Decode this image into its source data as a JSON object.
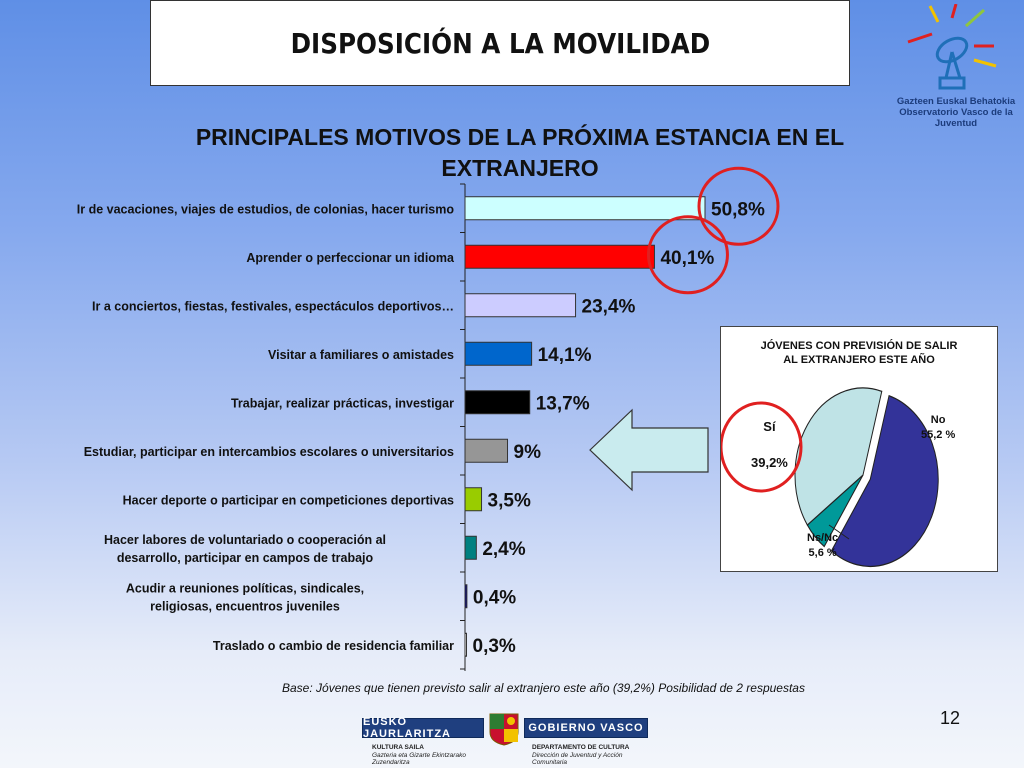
{
  "page_title": "DISPOSICIÓN A LA MOVILIDAD",
  "logo": {
    "line1": "Gazteen Euskal Behatokia",
    "line2": "Observatorio Vasco de la Juventud"
  },
  "chart_data": [
    {
      "type": "bar",
      "orientation": "horizontal",
      "title": "PRINCIPALES MOTIVOS DE LA PRÓXIMA ESTANCIA EN EL EXTRANJERO",
      "categories": [
        "Ir de vacaciones, viajes de estudios, de colonias, hacer turismo",
        "Aprender o perfeccionar un idioma",
        "Ir a conciertos, fiestas, festivales, espectáculos deportivos…",
        "Visitar a familiares o amistades",
        "Trabajar, realizar prácticas, investigar",
        "Estudiar, participar en intercambios escolares o universitarios",
        "Hacer deporte o participar en competiciones deportivas",
        "Hacer labores de voluntariado o cooperación al desarrollo, participar en campos de trabajo",
        "Acudir a reuniones políticas, sindicales, religiosas, encuentros juveniles",
        "Traslado o cambio de residencia familiar"
      ],
      "values": [
        50.8,
        40.1,
        23.4,
        14.1,
        13.7,
        9,
        3.5,
        2.4,
        0.4,
        0.3
      ],
      "value_labels": [
        "50,8%",
        "40,1%",
        "23,4%",
        "14,1%",
        "13,7%",
        "9%",
        "3,5%",
        "2,4%",
        "0,4%",
        "0,3%"
      ],
      "bar_colors": [
        "#ccffff",
        "#ff0000",
        "#ccccff",
        "#0066cc",
        "#000000",
        "#969696",
        "#99cc00",
        "#008080",
        "#000080",
        "#ffffff"
      ],
      "highlighted": [
        0,
        1
      ],
      "highlight_color": "#e02020",
      "xlim": [
        0,
        60
      ]
    },
    {
      "type": "pie",
      "title_lines": [
        "JÓVENES CON PREVISIÓN DE SALIR",
        "AL EXTRANJERO ESTE AÑO"
      ],
      "slices": [
        {
          "name": "No",
          "value": 55.2,
          "label": "55,2 %",
          "color": "#333399"
        },
        {
          "name": "Ns/Nc",
          "value": 5.6,
          "label": "5,6 %",
          "color": "#009999"
        },
        {
          "name": "Sí",
          "value": 39.2,
          "label": "39,2%",
          "color": "#bfe3e6"
        }
      ],
      "exploded": "No",
      "highlighted": "Sí"
    }
  ],
  "footnote": "Base: Jóvenes que tienen previsto salir al extranjero este año (39,2%) Posibilidad de 2 respuestas",
  "page_number": "12",
  "footer": {
    "left_banner": "EUSKO JAURLARITZA",
    "right_banner": "GOBIERNO VASCO",
    "left_dept_title": "KULTURA SAILA",
    "left_dept_sub1": "Gazteria eta Gizarte Ekintzarako",
    "left_dept_sub2": "Zuzendaritza",
    "right_dept_title": "DEPARTAMENTO DE CULTURA",
    "right_dept_sub1": "Dirección de Juventud y Acción",
    "right_dept_sub2": "Comunitaria"
  }
}
